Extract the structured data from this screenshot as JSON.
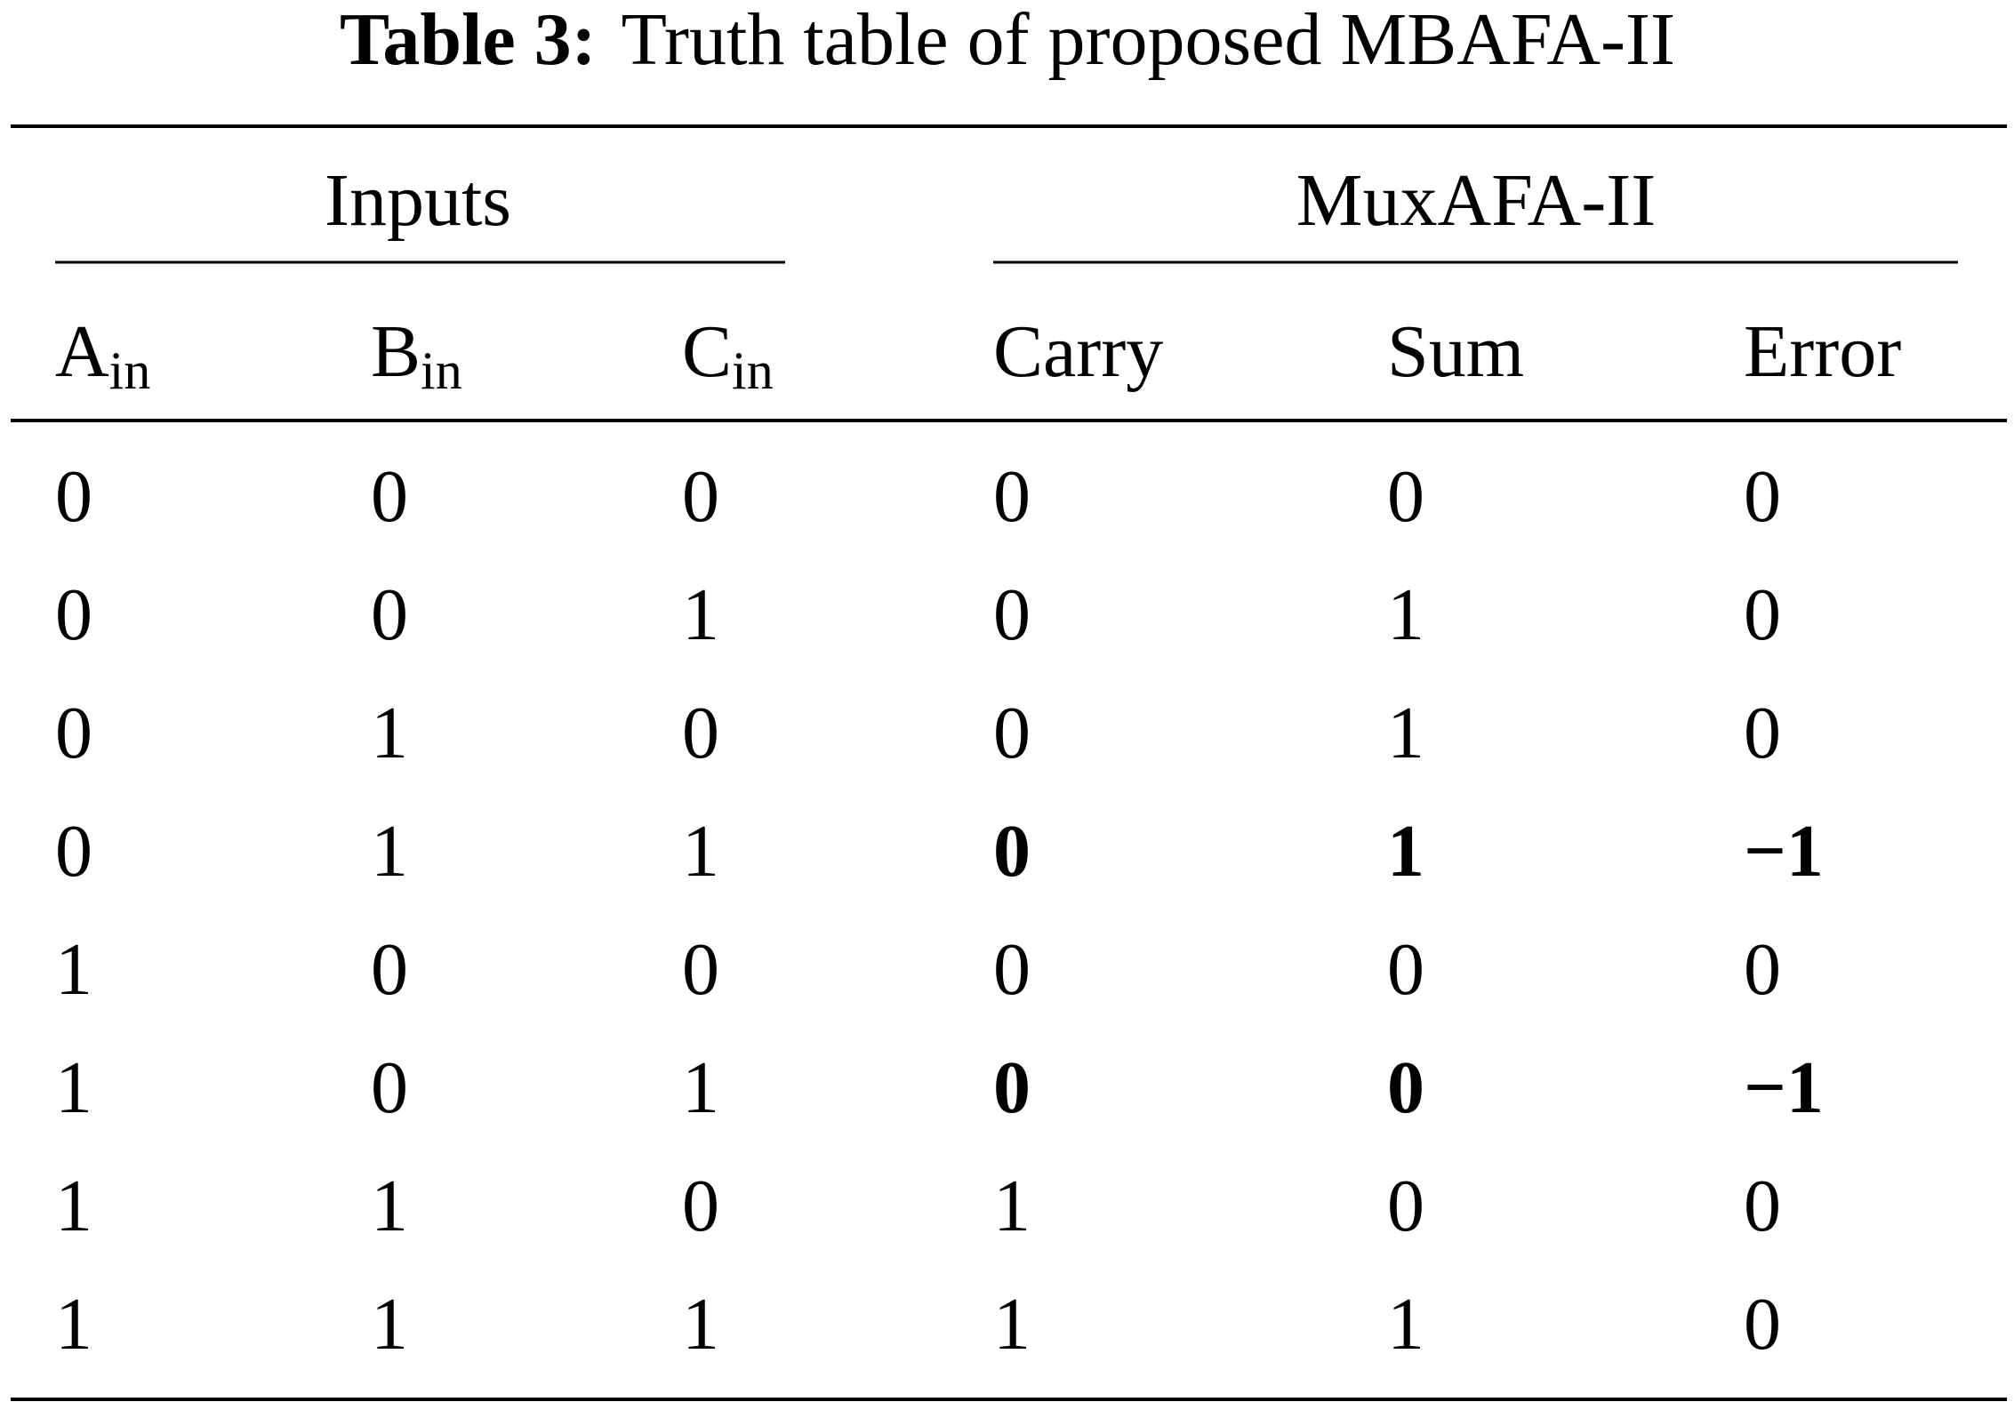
{
  "table": {
    "caption": {
      "label": "Table 3:",
      "text": "Truth table of proposed MBAFA-II"
    },
    "groups": [
      "Inputs",
      "MuxAFA-II"
    ],
    "columns": [
      {
        "main": "A",
        "sub": "in"
      },
      {
        "main": "B",
        "sub": "in"
      },
      {
        "main": "C",
        "sub": "in"
      },
      {
        "main": "Carry"
      },
      {
        "main": "Sum"
      },
      {
        "main": "Error"
      }
    ],
    "rows": [
      [
        "0",
        "0",
        "0",
        "0",
        "0",
        "0"
      ],
      [
        "0",
        "0",
        "1",
        "0",
        "1",
        "0"
      ],
      [
        "0",
        "1",
        "0",
        "0",
        "1",
        "0"
      ],
      [
        "0",
        "1",
        "1",
        "0",
        "1",
        "−1"
      ],
      [
        "1",
        "0",
        "0",
        "0",
        "0",
        "0"
      ],
      [
        "1",
        "0",
        "1",
        "0",
        "0",
        "−1"
      ],
      [
        "1",
        "1",
        "0",
        "1",
        "0",
        "0"
      ],
      [
        "1",
        "1",
        "1",
        "1",
        "1",
        "0"
      ]
    ],
    "bold": [
      [
        3,
        3
      ],
      [
        3,
        4
      ],
      [
        3,
        5
      ],
      [
        5,
        3
      ],
      [
        5,
        4
      ],
      [
        5,
        5
      ]
    ]
  }
}
